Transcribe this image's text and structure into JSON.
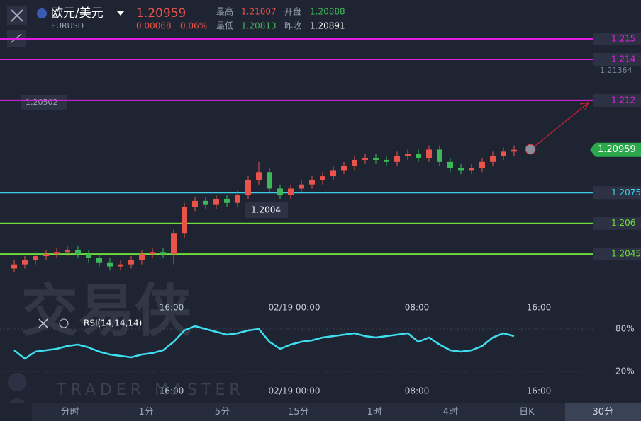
{
  "header": {
    "pair": "欧元/美元",
    "symbol": "EURUSD",
    "price": 1.20959,
    "change": 0.00068,
    "change_pct": "0.06%",
    "high_label": "最高",
    "high": 1.21007,
    "open_label": "开盘",
    "open": 1.20888,
    "low_label": "最低",
    "low": 1.20813,
    "prev_label": "昨收",
    "prev": 1.20891
  },
  "chart_data": {
    "type": "candlestick",
    "ylim": [
      1.2024,
      1.2169
    ],
    "up_color": "#e8534a",
    "down_color": "#3db858",
    "levels": [
      {
        "value": 1.215,
        "color": "#e020e0"
      },
      {
        "value": 1.214,
        "color": "#e020e0"
      },
      {
        "value": 1.212,
        "color": "#e020e0"
      },
      {
        "value": 1.2075,
        "color": "#3ad0e8"
      },
      {
        "value": 1.206,
        "color": "#6fdc3a"
      },
      {
        "value": 1.2045,
        "color": "#6fdc3a"
      }
    ],
    "annotations": [
      "1.21364",
      "1.20502",
      "1.2004"
    ],
    "x_labels": [
      "16:00",
      "02/19 00:00",
      "08:00",
      "16:00"
    ],
    "open": [
      1.2038,
      1.204,
      1.2042,
      1.2044,
      1.2045,
      1.2046,
      1.2047,
      1.2045,
      1.2043,
      1.2041,
      1.2039,
      1.204,
      1.2042,
      1.2045,
      1.2046,
      1.2045,
      1.2055,
      1.2068,
      1.2071,
      1.2069,
      1.2072,
      1.207,
      1.2074,
      1.2081,
      1.2085,
      1.2077,
      1.2074,
      1.2077,
      1.2079,
      1.2081,
      1.2083,
      1.2086,
      1.2088,
      1.2091,
      1.2092,
      1.2091,
      1.209,
      1.2093,
      1.2094,
      1.2092,
      1.2096,
      1.209,
      1.2087,
      1.2086,
      1.2087,
      1.209,
      1.2093,
      1.2095
    ],
    "high": [
      1.2042,
      1.2044,
      1.2046,
      1.2047,
      1.2048,
      1.2049,
      1.2049,
      1.2047,
      1.2045,
      1.2043,
      1.2042,
      1.2044,
      1.2047,
      1.2048,
      1.2048,
      1.2057,
      1.207,
      1.2073,
      1.2073,
      1.2074,
      1.2074,
      1.2076,
      1.2083,
      1.209,
      1.2087,
      1.2079,
      1.2079,
      1.2081,
      1.2083,
      1.2085,
      1.2088,
      1.209,
      1.2093,
      1.2094,
      1.2094,
      1.2093,
      1.2095,
      1.2096,
      1.2096,
      1.2098,
      1.2098,
      1.2092,
      1.2089,
      1.2089,
      1.2092,
      1.2095,
      1.2097,
      1.2098
    ],
    "low": [
      1.2036,
      1.2038,
      1.204,
      1.2042,
      1.2043,
      1.2044,
      1.2043,
      1.2041,
      1.2039,
      1.2037,
      1.2037,
      1.2038,
      1.204,
      1.2043,
      1.2043,
      1.204,
      1.2053,
      1.2066,
      1.2067,
      1.2067,
      1.2068,
      1.2068,
      1.2072,
      1.2079,
      1.2075,
      1.2072,
      1.2072,
      1.2075,
      1.2077,
      1.2079,
      1.2081,
      1.2084,
      1.2086,
      1.2089,
      1.2089,
      1.2088,
      1.2088,
      1.2091,
      1.209,
      1.209,
      1.2088,
      1.2085,
      1.2084,
      1.2084,
      1.2085,
      1.2088,
      1.2091,
      1.2093
    ],
    "close": [
      1.204,
      1.2042,
      1.2044,
      1.2045,
      1.2046,
      1.2047,
      1.2045,
      1.2043,
      1.2041,
      1.2039,
      1.204,
      1.2042,
      1.2045,
      1.2046,
      1.2045,
      1.2055,
      1.2068,
      1.2071,
      1.2069,
      1.2072,
      1.207,
      1.2074,
      1.2081,
      1.2085,
      1.2077,
      1.2074,
      1.2077,
      1.2079,
      1.2081,
      1.2083,
      1.2086,
      1.2088,
      1.2091,
      1.2092,
      1.2091,
      1.209,
      1.2093,
      1.2094,
      1.2092,
      1.2096,
      1.209,
      1.2087,
      1.2086,
      1.2087,
      1.209,
      1.2093,
      1.2095,
      1.20959
    ],
    "rsi": {
      "name": "RSI(14,14,14)",
      "color": "#3ee0f0",
      "ylim": [
        10,
        90
      ],
      "yticks": [
        {
          "value": 80,
          "label": "80%"
        },
        {
          "value": 20,
          "label": "20%"
        }
      ],
      "values": [
        50,
        38,
        48,
        50,
        52,
        56,
        58,
        54,
        48,
        44,
        42,
        40,
        44,
        46,
        50,
        62,
        78,
        84,
        80,
        76,
        72,
        74,
        78,
        80,
        62,
        52,
        58,
        62,
        64,
        68,
        70,
        72,
        74,
        70,
        68,
        70,
        72,
        74,
        62,
        68,
        58,
        50,
        48,
        50,
        56,
        68,
        74,
        70
      ]
    }
  },
  "watermark": {
    "title": "交易侠",
    "subtitle": "TRADER MASTER"
  },
  "tabs": [
    "分时",
    "1分",
    "5分",
    "15分",
    "1时",
    "4时",
    "日K",
    "30分"
  ]
}
